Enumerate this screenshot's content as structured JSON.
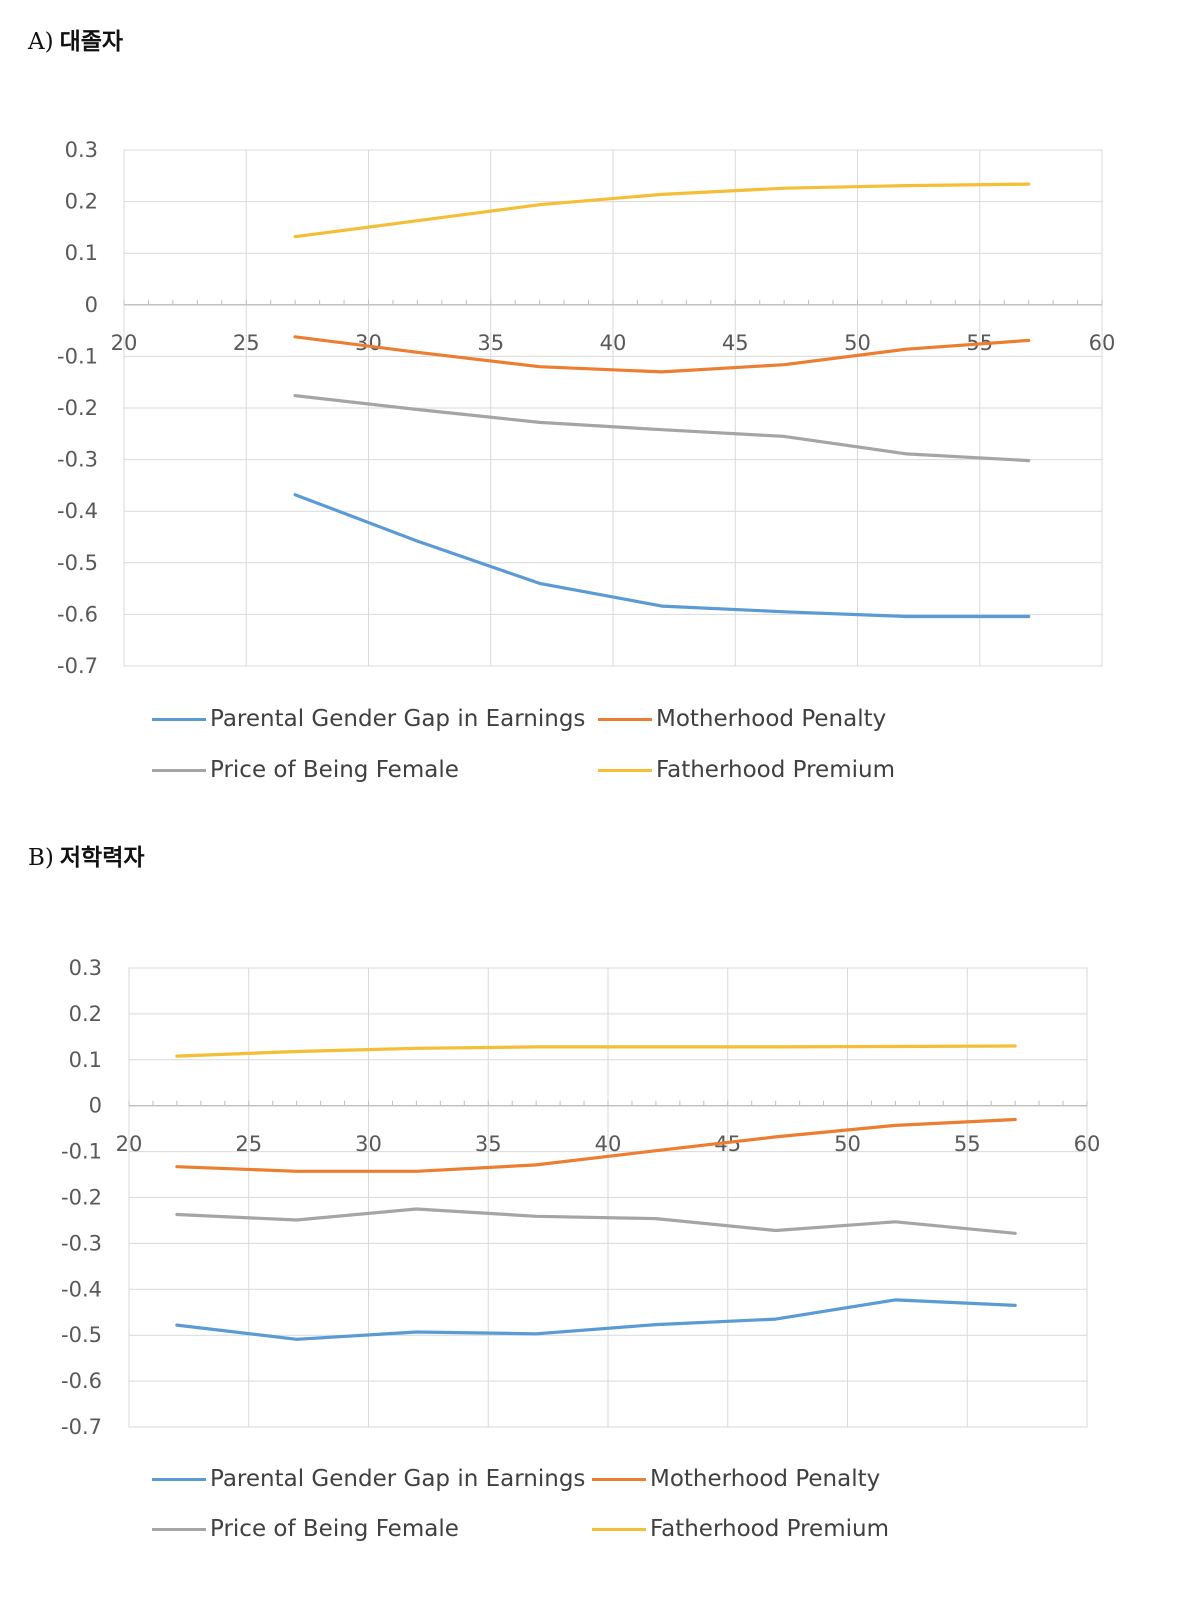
{
  "panels": [
    {
      "letter": "A)",
      "name": "대졸자",
      "chart_data": {
        "type": "line",
        "xlim": [
          20,
          60
        ],
        "ylim": [
          -0.7,
          0.3
        ],
        "xticks": [
          "20",
          "25",
          "30",
          "35",
          "40",
          "45",
          "50",
          "55",
          "60"
        ],
        "yticks": [
          "0.3",
          "0.2",
          "0.1",
          "0",
          "-0.1",
          "-0.2",
          "-0.3",
          "-0.4",
          "-0.5",
          "-0.6",
          "-0.7"
        ],
        "grid": true,
        "legend_position": "bottom",
        "x": [
          27,
          32,
          37,
          42,
          47,
          52,
          57
        ],
        "series": [
          {
            "name": "Parental Gender Gap in Earnings",
            "color": "#5B9BD5",
            "values": [
              -0.368,
              -0.458,
              -0.54,
              -0.584,
              -0.595,
              -0.604,
              -0.604
            ]
          },
          {
            "name": "Motherhood Penalty",
            "color": "#ED7D31",
            "values": [
              -0.062,
              -0.092,
              -0.12,
              -0.13,
              -0.116,
              -0.086,
              -0.069
            ]
          },
          {
            "name": "Price of Being Female",
            "color": "#A5A5A5",
            "values": [
              -0.176,
              -0.203,
              -0.228,
              -0.242,
              -0.255,
              -0.289,
              -0.302
            ]
          },
          {
            "name": "Fatherhood Premium",
            "color": "#F4BF37",
            "values": [
              0.132,
              0.163,
              0.194,
              0.214,
              0.226,
              0.231,
              0.234
            ]
          }
        ]
      }
    },
    {
      "letter": "B)",
      "name": "저학력자",
      "chart_data": {
        "type": "line",
        "xlim": [
          20,
          60
        ],
        "ylim": [
          -0.7,
          0.3
        ],
        "xticks": [
          "20",
          "25",
          "30",
          "35",
          "40",
          "45",
          "50",
          "55",
          "60"
        ],
        "yticks": [
          "0.3",
          "0.2",
          "0.1",
          "0",
          "-0.1",
          "-0.2",
          "-0.3",
          "-0.4",
          "-0.5",
          "-0.6",
          "-0.7"
        ],
        "grid": true,
        "legend_position": "bottom",
        "x": [
          22,
          27,
          32,
          37,
          42,
          47,
          52,
          57
        ],
        "series": [
          {
            "name": "Parental Gender Gap in Earnings",
            "color": "#5B9BD5",
            "values": [
              -0.478,
              -0.509,
              -0.493,
              -0.497,
              -0.477,
              -0.465,
              -0.423,
              -0.435
            ]
          },
          {
            "name": "Motherhood Penalty",
            "color": "#ED7D31",
            "values": [
              -0.133,
              -0.143,
              -0.143,
              -0.129,
              -0.098,
              -0.068,
              -0.043,
              -0.03
            ]
          },
          {
            "name": "Price of Being Female",
            "color": "#A5A5A5",
            "values": [
              -0.237,
              -0.249,
              -0.225,
              -0.241,
              -0.246,
              -0.272,
              -0.253,
              -0.278
            ]
          },
          {
            "name": "Fatherhood Premium",
            "color": "#F4BF37",
            "values": [
              0.108,
              0.118,
              0.125,
              0.128,
              0.128,
              0.128,
              0.129,
              0.13
            ]
          }
        ]
      }
    }
  ]
}
